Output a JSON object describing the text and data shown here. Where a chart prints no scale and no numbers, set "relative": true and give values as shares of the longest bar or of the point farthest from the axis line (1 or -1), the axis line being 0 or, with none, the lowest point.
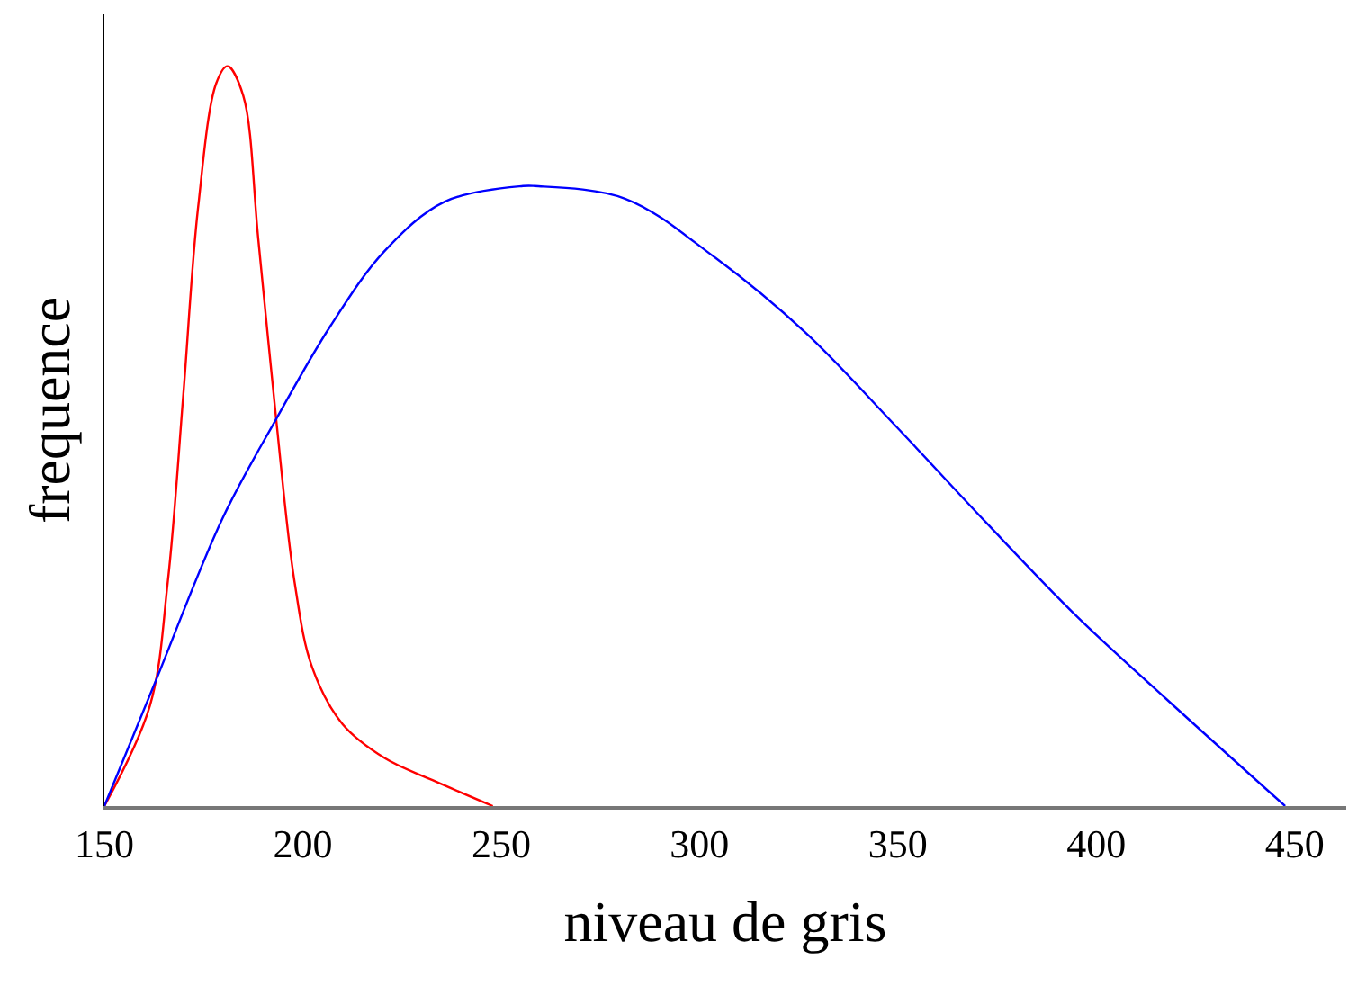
{
  "chart_data": {
    "type": "line",
    "relative": true,
    "xlabel": "niveau de gris",
    "ylabel": "frequence",
    "xlim": [
      150,
      463
    ],
    "xticks": [
      150,
      200,
      250,
      300,
      350,
      400,
      450
    ],
    "marker": "none",
    "line_style": "solid",
    "series": [
      {
        "color": "#ff0000",
        "x": [
          150,
          161.5,
          166,
          169.9,
          173.6,
          178.2,
          181,
          185,
          188.8,
          193.3,
          197.9,
          202.4,
          210,
          220.6,
          232.7,
          247.9
        ],
        "values": [
          0,
          0.136,
          0.304,
          0.556,
          0.808,
          0.977,
          1,
          0.96,
          0.766,
          0.523,
          0.304,
          0.187,
          0.111,
          0.065,
          0.035,
          0
        ]
      },
      {
        "color": "#0000ff",
        "x": [
          150,
          163,
          179.7,
          193.3,
          207,
          220.6,
          235.8,
          255.5,
          258.5,
          281.2,
          304,
          326.7,
          349.4,
          372.1,
          394.8,
          417.6,
          447.6
        ],
        "values": [
          0,
          0.17,
          0.388,
          0.523,
          0.649,
          0.75,
          0.817,
          0.838,
          0.838,
          0.821,
          0.741,
          0.64,
          0.514,
          0.384,
          0.258,
          0.145,
          0
        ]
      }
    ]
  }
}
